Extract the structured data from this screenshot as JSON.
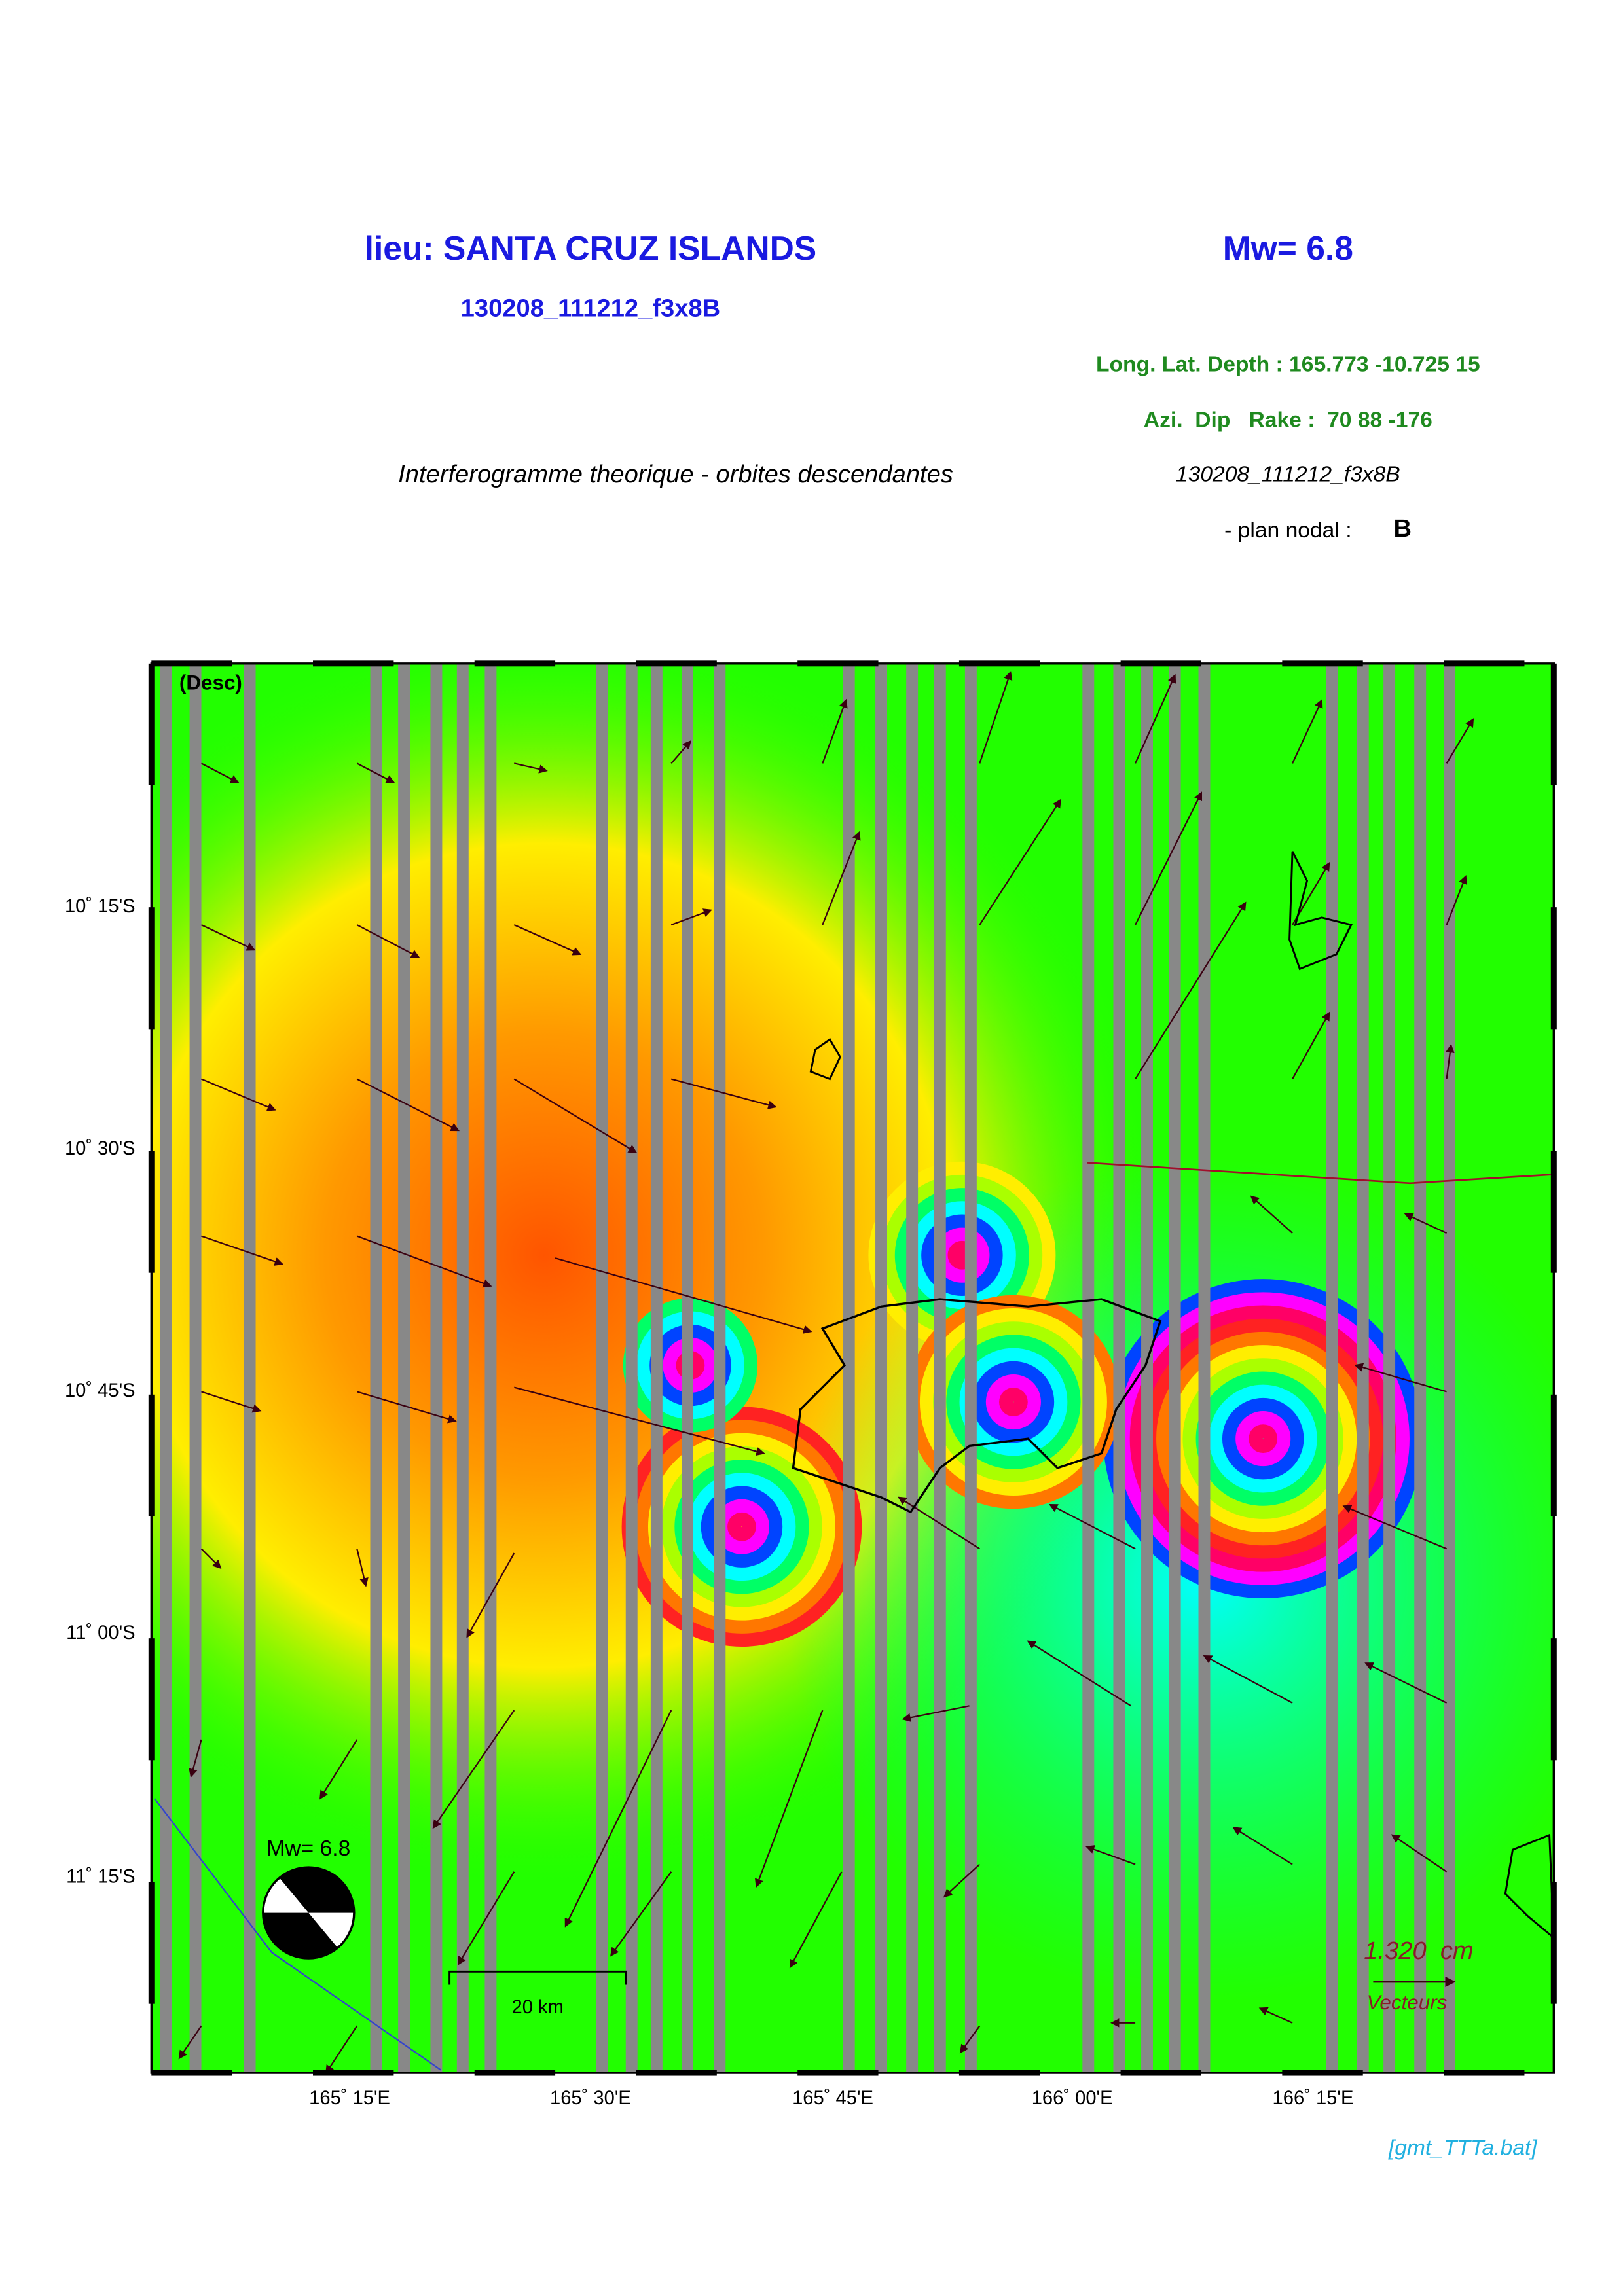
{
  "header": {
    "place": "lieu: SANTA CRUZ ISLANDS",
    "magnitude": "Mw= 6.8",
    "event_id": "130208_111212_f3x8B",
    "location_params": "Long. Lat. Depth : 165.773 -10.725 15",
    "mechanism_params": "Azi.  Dip   Rake :  70 88 -176",
    "subtitle": "Interferogramme theorique - orbites descendantes",
    "event_id_italic": "130208_111212_f3x8B",
    "nodal_plane_label": "- plan nodal :",
    "nodal_plane": "B"
  },
  "map": {
    "orbit": "(Desc)",
    "y_labels": [
      "10˚ 15'S",
      "10˚ 30'S",
      "10˚ 45'S",
      "11˚ 00'S",
      "11˚ 15'S"
    ],
    "x_labels": [
      "165˚ 15'E",
      "165˚ 30'E",
      "165˚ 45'E",
      "166˚ 00'E",
      "166˚ 15'E"
    ],
    "beachball_label": "Mw= 6.8",
    "scale_bar": "20 km",
    "vector_scale": "1.320  cm",
    "vector_label": "Vecteurs"
  },
  "footer": {
    "script": "[gmt_TTTa.bat]"
  }
}
